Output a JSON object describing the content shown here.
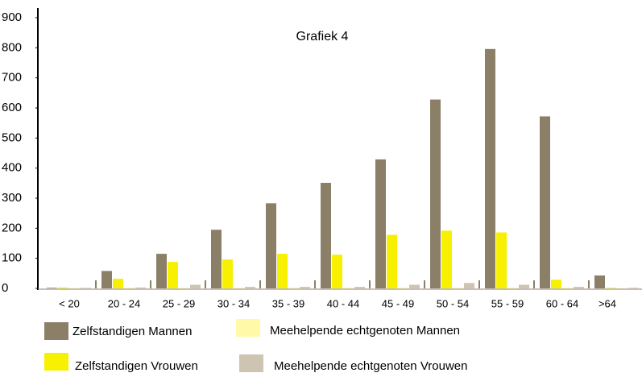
{
  "chart_data": {
    "type": "bar",
    "title": "Grafiek 4",
    "categories": [
      "< 20",
      "20 - 24",
      "25 - 29",
      "30 - 34",
      "35 - 39",
      "40 - 44",
      "45 - 49",
      "50 - 54",
      "55 - 59",
      "60 - 64",
      ">64"
    ],
    "series": [
      {
        "name": "Zelfstandigen Mannen",
        "color": "#8c7f67",
        "values": [
          2,
          58,
          115,
          195,
          283,
          351,
          429,
          628,
          796,
          572,
          43
        ]
      },
      {
        "name": "Zelfstandigen Vrouwen",
        "color": "#f7f000",
        "values": [
          3,
          32,
          88,
          96,
          115,
          112,
          178,
          192,
          186,
          29,
          2
        ]
      },
      {
        "name": "Meehelpende echtgenoten Mannen",
        "color": "#fff9a8",
        "values": [
          2,
          3,
          3,
          3,
          3,
          3,
          3,
          3,
          3,
          3,
          1
        ]
      },
      {
        "name": "Meehelpende echtgenoten Vrouwen",
        "color": "#cdc4b2",
        "values": [
          2,
          3,
          12,
          5,
          5,
          5,
          12,
          18,
          12,
          5,
          2
        ]
      }
    ],
    "ylim": [
      0,
      900
    ],
    "yticks": [
      0,
      100,
      200,
      300,
      400,
      500,
      600,
      700,
      800,
      900
    ]
  }
}
